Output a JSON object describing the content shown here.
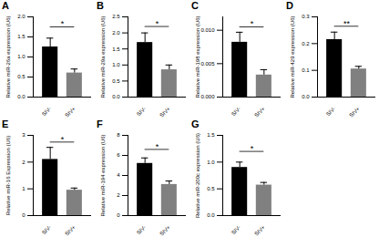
{
  "chart_data": [
    {
      "type": "bar",
      "title": "A",
      "y_label": "Relative miR-26a expression (U6)",
      "categories": [
        "SIV-",
        "SIV+"
      ],
      "values": [
        1.25,
        0.6
      ],
      "errors": [
        0.22,
        0.1
      ],
      "colors": [
        "#000000",
        "#808080"
      ],
      "ylim": [
        0,
        2
      ],
      "yticks": [
        {
          "value": 0,
          "label": "0.0"
        },
        {
          "value": 0.5,
          "label": "0.5"
        },
        {
          "value": 1,
          "label": "1.0"
        },
        {
          "value": 1.5,
          "label": "1.5"
        },
        {
          "value": 2,
          "label": "2.0"
        }
      ],
      "significance": {
        "label": "*",
        "y": 1.75
      }
    },
    {
      "type": "bar",
      "title": "B",
      "y_label": "Relative miR-29a expression (U6)",
      "categories": [
        "SIV-",
        "SIV+"
      ],
      "values": [
        1.7,
        0.85
      ],
      "errors": [
        0.3,
        0.15
      ],
      "colors": [
        "#000000",
        "#808080"
      ],
      "ylim": [
        0,
        2.5
      ],
      "yticks": [
        {
          "value": 0,
          "label": "0.0"
        },
        {
          "value": 0.5,
          "label": "0.5"
        },
        {
          "value": 1,
          "label": "1.0"
        },
        {
          "value": 1.5,
          "label": "1.5"
        },
        {
          "value": 2,
          "label": "2.0"
        },
        {
          "value": 2.5,
          "label": "2.5"
        }
      ],
      "significance": {
        "label": "*",
        "y": 2.2
      }
    },
    {
      "type": "bar",
      "title": "C",
      "y_label": "Relative miR-198 expression (U6)",
      "categories": [
        "SIV-",
        "SIV+"
      ],
      "values": [
        0.0082,
        0.0033
      ],
      "errors": [
        0.0015,
        0.0008
      ],
      "colors": [
        "#000000",
        "#808080"
      ],
      "ylim": [
        0,
        0.012
      ],
      "yticks": [
        {
          "value": 0,
          "label": "0.000"
        },
        {
          "value": 0.005,
          "label": "0.005"
        },
        {
          "value": 0.01,
          "label": "0.010"
        }
      ],
      "significance": {
        "label": "*",
        "y": 0.0105
      }
    },
    {
      "type": "bar",
      "title": "D",
      "y_label": "Relative miR-429 expression (U6)",
      "categories": [
        "SIV-",
        "SIV+"
      ],
      "values": [
        0.215,
        0.105
      ],
      "errors": [
        0.028,
        0.01
      ],
      "colors": [
        "#000000",
        "#808080"
      ],
      "ylim": [
        0,
        0.3
      ],
      "yticks": [
        {
          "value": 0,
          "label": "0.0"
        },
        {
          "value": 0.1,
          "label": "0.1"
        },
        {
          "value": 0.2,
          "label": "0.2"
        },
        {
          "value": 0.3,
          "label": "0.3"
        }
      ],
      "significance": {
        "label": "**",
        "y": 0.265
      }
    },
    {
      "type": "bar",
      "title": "E",
      "y_label": "Relative miR-16 Expression (U6)",
      "categories": [
        "SIV-",
        "SIV+"
      ],
      "values": [
        2.1,
        0.95
      ],
      "errors": [
        0.45,
        0.08
      ],
      "colors": [
        "#000000",
        "#808080"
      ],
      "ylim": [
        0,
        3
      ],
      "yticks": [
        0,
        1,
        2,
        3
      ],
      "significance": {
        "label": "*",
        "y": 2.75
      }
    },
    {
      "type": "bar",
      "title": "F",
      "y_label": "Relative miR-194 expression (U6)",
      "categories": [
        "SIV-",
        "SIV+"
      ],
      "values": [
        5.2,
        3.1
      ],
      "errors": [
        0.55,
        0.35
      ],
      "colors": [
        "#000000",
        "#808080"
      ],
      "ylim": [
        0,
        8
      ],
      "yticks": [
        0,
        2,
        4,
        6,
        8
      ],
      "significance": {
        "label": "*",
        "y": 6.6
      }
    },
    {
      "type": "bar",
      "title": "G",
      "y_label": "Relative miR-200c expression (U6)",
      "categories": [
        "SIV-",
        "SIV+"
      ],
      "values": [
        0.9,
        0.57
      ],
      "errors": [
        0.1,
        0.05
      ],
      "colors": [
        "#000000",
        "#808080"
      ],
      "ylim": [
        0,
        1.5
      ],
      "yticks": [
        {
          "value": 0,
          "label": "0.0"
        },
        {
          "value": 0.5,
          "label": "0.5"
        },
        {
          "value": 1,
          "label": "1.0"
        },
        {
          "value": 1.5,
          "label": "1.5"
        }
      ],
      "significance": {
        "label": "*",
        "y": 1.2
      }
    }
  ]
}
